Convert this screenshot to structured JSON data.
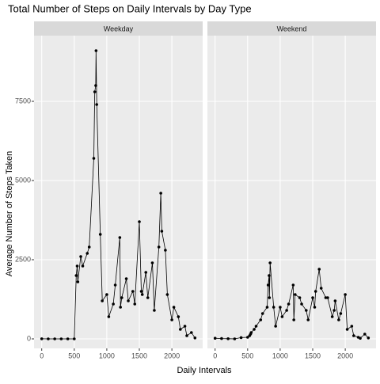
{
  "chart_data": {
    "type": "line",
    "title": "Total Number of Steps on Daily Intervals by Day Type",
    "x_label": "Daily Intervals",
    "y_label": "Average Number of Steps Taken",
    "color": "#000000",
    "grid": true,
    "xlim": [
      -118,
      2473
    ],
    "ylim": [
      -300,
      9575
    ],
    "xticks": [
      0,
      500,
      1000,
      1500,
      2000
    ],
    "yticks": [
      0,
      2500,
      5000,
      7500
    ],
    "facets": [
      {
        "name": "Weekday",
        "x": [
          0,
          100,
          200,
          300,
          400,
          500,
          530,
          545,
          555,
          600,
          630,
          700,
          730,
          800,
          815,
          830,
          835,
          845,
          900,
          930,
          1000,
          1030,
          1100,
          1130,
          1200,
          1210,
          1230,
          1300,
          1330,
          1400,
          1430,
          1500,
          1530,
          1545,
          1600,
          1630,
          1700,
          1730,
          1800,
          1830,
          1845,
          1900,
          1930,
          2000,
          2030,
          2100,
          2130,
          2200,
          2230,
          2300,
          2355
        ],
        "values": [
          2,
          0,
          0,
          0,
          0,
          0,
          2000,
          2300,
          1800,
          2600,
          2300,
          2700,
          2900,
          5700,
          7800,
          8000,
          9100,
          7400,
          3300,
          1200,
          1400,
          700,
          1100,
          1700,
          3200,
          1000,
          1300,
          1900,
          1200,
          1500,
          1100,
          3700,
          1500,
          1400,
          2100,
          1300,
          2400,
          900,
          2900,
          4600,
          3400,
          2800,
          1400,
          600,
          1000,
          700,
          300,
          400,
          100,
          200,
          30
        ]
      },
      {
        "name": "Weekend",
        "x": [
          0,
          100,
          200,
          300,
          400,
          500,
          530,
          545,
          555,
          600,
          630,
          700,
          730,
          800,
          815,
          830,
          835,
          845,
          900,
          930,
          1000,
          1030,
          1100,
          1130,
          1200,
          1210,
          1230,
          1300,
          1330,
          1400,
          1430,
          1500,
          1530,
          1545,
          1600,
          1630,
          1700,
          1730,
          1800,
          1830,
          1845,
          1900,
          1930,
          2000,
          2030,
          2100,
          2130,
          2200,
          2230,
          2300,
          2355
        ],
        "values": [
          20,
          10,
          5,
          0,
          40,
          50,
          100,
          150,
          200,
          300,
          400,
          600,
          800,
          1000,
          1700,
          2000,
          1300,
          2400,
          1000,
          400,
          1000,
          700,
          900,
          1100,
          1700,
          600,
          1400,
          1300,
          1100,
          900,
          600,
          1300,
          1000,
          1500,
          2200,
          1600,
          1300,
          1300,
          700,
          900,
          1200,
          600,
          800,
          1400,
          300,
          400,
          100,
          50,
          20,
          150,
          30
        ]
      }
    ]
  }
}
